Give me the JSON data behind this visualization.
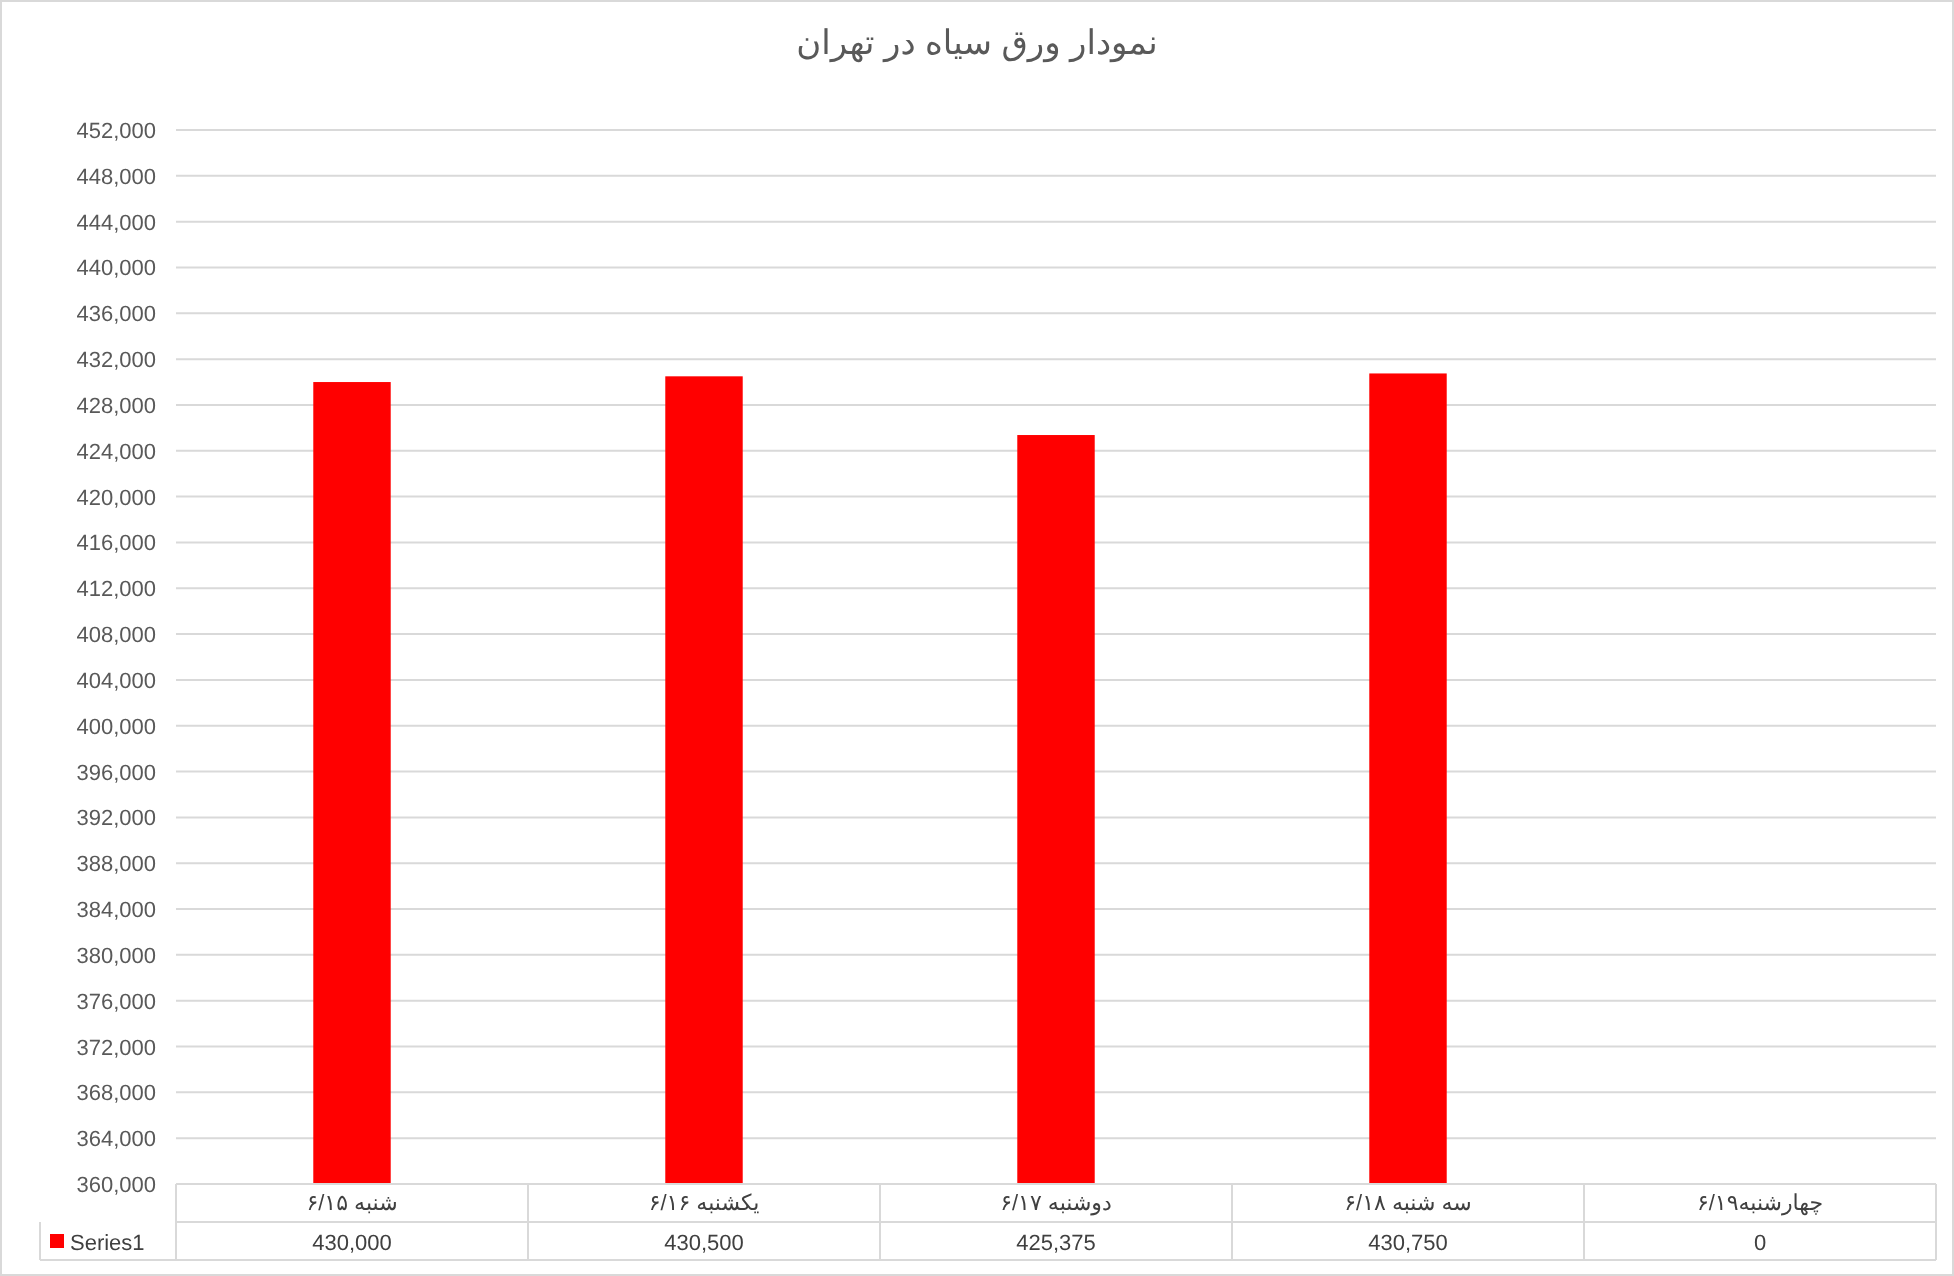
{
  "chart_data": {
    "type": "bar",
    "title": "نمودار ورق سیاه در تهران",
    "categories": [
      "شنبه ۶/۱۵",
      "یکشنبه ۶/۱۶",
      "دوشنبه ۶/۱۷",
      "سه شنبه ۶/۱۸",
      "چهارشنبه۶/۱۹"
    ],
    "series": [
      {
        "name": "Series1",
        "color": "#ff0000",
        "values": [
          430000,
          430500,
          425375,
          430750,
          null
        ],
        "value_labels": [
          "430,000",
          "430,500",
          "425,375",
          "430,750",
          "0"
        ]
      }
    ],
    "ylim": [
      360000,
      452000
    ],
    "yticks": [
      {
        "value": 360000,
        "label": "360,000"
      },
      {
        "value": 364000,
        "label": "364,000"
      },
      {
        "value": 368000,
        "label": "368,000"
      },
      {
        "value": 372000,
        "label": "372,000"
      },
      {
        "value": 376000,
        "label": "376,000"
      },
      {
        "value": 380000,
        "label": "380,000"
      },
      {
        "value": 384000,
        "label": "384,000"
      },
      {
        "value": 388000,
        "label": "388,000"
      },
      {
        "value": 392000,
        "label": "392,000"
      },
      {
        "value": 396000,
        "label": "396,000"
      },
      {
        "value": 400000,
        "label": "400,000"
      },
      {
        "value": 404000,
        "label": "404,000"
      },
      {
        "value": 408000,
        "label": "408,000"
      },
      {
        "value": 412000,
        "label": "412,000"
      },
      {
        "value": 416000,
        "label": "416,000"
      },
      {
        "value": 420000,
        "label": "420,000"
      },
      {
        "value": 424000,
        "label": "424,000"
      },
      {
        "value": 428000,
        "label": "428,000"
      },
      {
        "value": 432000,
        "label": "432,000"
      },
      {
        "value": 436000,
        "label": "436,000"
      },
      {
        "value": 440000,
        "label": "440,000"
      },
      {
        "value": 444000,
        "label": "444,000"
      },
      {
        "value": 448000,
        "label": "448,000"
      },
      {
        "value": 452000,
        "label": "452,000"
      }
    ],
    "grid": "y",
    "legend": "bottom"
  }
}
